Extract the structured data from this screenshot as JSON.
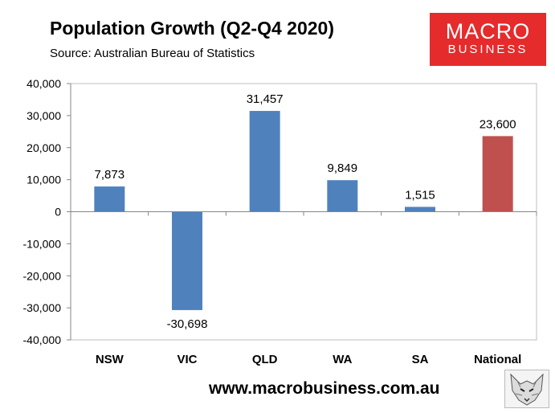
{
  "header": {
    "title": "Population Growth (Q2-Q4 2020)",
    "subtitle": "Source: Australian Bureau of Statistics"
  },
  "logo": {
    "line1": "MACRO",
    "line2": "BUSINESS"
  },
  "footer": {
    "url": "www.macrobusiness.com.au"
  },
  "chart_data": {
    "type": "bar",
    "title": "Population Growth (Q2-Q4 2020)",
    "subtitle": "Source: Australian Bureau of Statistics",
    "categories": [
      "NSW",
      "VIC",
      "QLD",
      "WA",
      "SA",
      "National"
    ],
    "values": [
      7873,
      -30698,
      31457,
      9849,
      1515,
      23600
    ],
    "data_labels": [
      "7,873",
      "-30,698",
      "31,457",
      "9,849",
      "1,515",
      "23,600"
    ],
    "ylim": [
      -40000,
      40000
    ],
    "yticks": [
      40000,
      30000,
      20000,
      10000,
      0,
      -10000,
      -20000,
      -30000,
      -40000
    ],
    "ytick_labels": [
      "40,000",
      "30,000",
      "20,000",
      "10,000",
      "0",
      "-10,000",
      "-20,000",
      "-30,000",
      "-40,000"
    ],
    "bar_colors": [
      "#4f81bd",
      "#4f81bd",
      "#4f81bd",
      "#4f81bd",
      "#4f81bd",
      "#c0504d"
    ],
    "grid": false,
    "legend": "none"
  }
}
